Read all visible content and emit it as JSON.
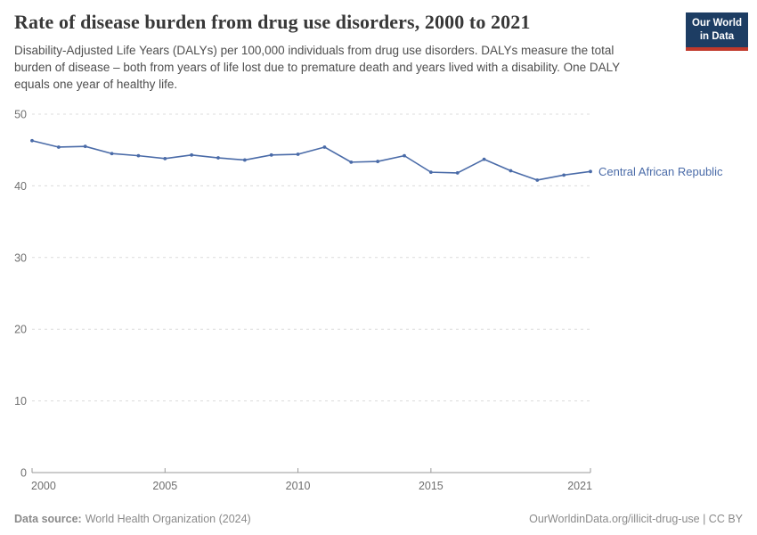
{
  "chart_data": {
    "type": "line",
    "title": "Rate of disease burden from drug use disorders, 2000 to 2021",
    "subtitle": "Disability-Adjusted Life Years (DALYs) per 100,000 individuals from drug use disorders. DALYs measure the total burden of disease – both from years of life lost due to premature death and years lived with a disability. One DALY equals one year of healthy life.",
    "xlabel": "",
    "ylabel": "",
    "x": [
      2000,
      2001,
      2002,
      2003,
      2004,
      2005,
      2006,
      2007,
      2008,
      2009,
      2010,
      2011,
      2012,
      2013,
      2014,
      2015,
      2016,
      2017,
      2018,
      2019,
      2020,
      2021
    ],
    "series": [
      {
        "name": "Central African Republic",
        "color": "#4a6ba8",
        "values": [
          46.3,
          45.4,
          45.5,
          44.5,
          44.2,
          43.8,
          44.3,
          43.9,
          43.6,
          44.3,
          44.4,
          45.4,
          43.3,
          43.4,
          44.2,
          41.9,
          41.8,
          43.7,
          42.1,
          40.8,
          41.5,
          42.0
        ]
      }
    ],
    "ylim": [
      0,
      50
    ],
    "yticks": [
      0,
      10,
      20,
      30,
      40,
      50
    ],
    "xticks": [
      2000,
      2005,
      2010,
      2015,
      2021
    ],
    "grid": "horizontal-dashed",
    "legend_position": "right-of-line-end",
    "grid_color": "#dcdcdc",
    "axis_color": "#999999",
    "axis_text_color": "#6f6f6f"
  },
  "header": {
    "logo": {
      "line1": "Our World",
      "line2": "in Data",
      "bg_color": "#1d3d63",
      "accent_color": "#c0392b"
    }
  },
  "footer": {
    "source_label": "Data source:",
    "source_value": "World Health Organization (2024)",
    "credit": "OurWorldinData.org/illicit-drug-use | CC BY"
  }
}
